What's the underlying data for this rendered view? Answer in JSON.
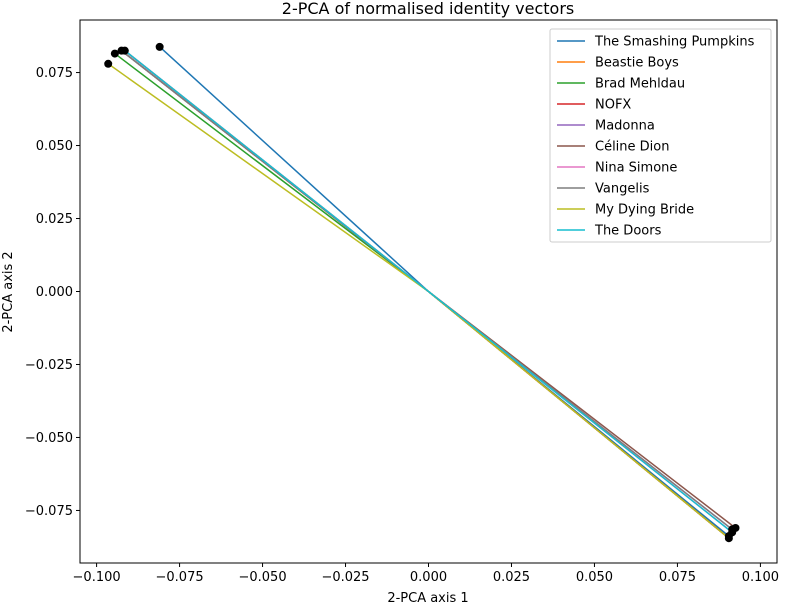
{
  "chart_data": {
    "type": "line",
    "title": "2-PCA of normalised identity vectors",
    "xlabel": "2-PCA axis 1",
    "ylabel": "2-PCA axis 2",
    "xlim": [
      -0.105,
      0.105
    ],
    "ylim": [
      -0.093,
      0.093
    ],
    "xticks": [
      "−0.100",
      "−0.075",
      "−0.050",
      "−0.025",
      "0.000",
      "0.025",
      "0.050",
      "0.075",
      "0.100"
    ],
    "xtick_values": [
      -0.1,
      -0.075,
      -0.05,
      -0.025,
      0.0,
      0.025,
      0.05,
      0.075,
      0.1
    ],
    "yticks": [
      "−0.075",
      "−0.050",
      "−0.025",
      "0.000",
      "0.025",
      "0.050",
      "0.075"
    ],
    "ytick_values": [
      -0.075,
      -0.05,
      -0.025,
      0.0,
      0.025,
      0.05,
      0.075
    ],
    "legend_position": "top-right",
    "grid": false,
    "series": [
      {
        "name": "The Smashing Pumpkins",
        "color": "#1f77b4",
        "x": [
          -0.081,
          0.0,
          0.0905
        ],
        "y": [
          0.0838,
          0.0,
          -0.0838
        ]
      },
      {
        "name": "Beastie Boys",
        "color": "#ff7f0e",
        "x": [
          -0.0925,
          0.0,
          0.0905
        ],
        "y": [
          0.0825,
          0.0,
          -0.0845
        ]
      },
      {
        "name": "Brad Mehldau",
        "color": "#2ca02c",
        "x": [
          -0.0945,
          0.0,
          0.0905
        ],
        "y": [
          0.0815,
          0.0,
          -0.0845
        ]
      },
      {
        "name": "NOFX",
        "color": "#d62728",
        "x": [
          -0.0915,
          0.0,
          0.0905
        ],
        "y": [
          0.0825,
          0.0,
          -0.0845
        ]
      },
      {
        "name": "Madonna",
        "color": "#9467bd",
        "x": [
          -0.0925,
          0.0,
          0.0915
        ],
        "y": [
          0.0825,
          0.0,
          -0.0815
        ]
      },
      {
        "name": "Céline Dion",
        "color": "#8c564b",
        "x": [
          -0.0925,
          0.0,
          0.0925
        ],
        "y": [
          0.0825,
          0.0,
          -0.081
        ]
      },
      {
        "name": "Nina Simone",
        "color": "#e377c2",
        "x": [
          -0.0915,
          0.0,
          0.0915
        ],
        "y": [
          0.0825,
          0.0,
          -0.0825
        ]
      },
      {
        "name": "Vangelis",
        "color": "#7f7f7f",
        "x": [
          -0.0925,
          0.0,
          0.0915
        ],
        "y": [
          0.0825,
          0.0,
          -0.0815
        ]
      },
      {
        "name": "My Dying Bride",
        "color": "#bcbd22",
        "x": [
          -0.0965,
          0.0,
          0.0905
        ],
        "y": [
          0.078,
          0.0,
          -0.0845
        ]
      },
      {
        "name": "The Doors",
        "color": "#17becf",
        "x": [
          -0.0915,
          0.0,
          0.0915
        ],
        "y": [
          0.0825,
          0.0,
          -0.0825
        ]
      }
    ],
    "points": [
      {
        "x": -0.081,
        "y": 0.0838
      },
      {
        "x": -0.0925,
        "y": 0.0825
      },
      {
        "x": -0.0945,
        "y": 0.0815
      },
      {
        "x": -0.0915,
        "y": 0.0825
      },
      {
        "x": -0.0965,
        "y": 0.078
      },
      {
        "x": 0.0905,
        "y": -0.0838
      },
      {
        "x": 0.0905,
        "y": -0.0845
      },
      {
        "x": 0.0915,
        "y": -0.0815
      },
      {
        "x": 0.0925,
        "y": -0.081
      },
      {
        "x": 0.0915,
        "y": -0.0825
      }
    ]
  }
}
